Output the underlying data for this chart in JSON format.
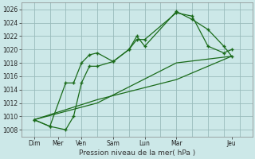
{
  "bg_color": "#cce8e8",
  "grid_color": "#99bbbb",
  "line_color": "#1a6b1a",
  "xlabel": "Pression niveau de la mer( hPa )",
  "yticks": [
    1008,
    1010,
    1012,
    1014,
    1016,
    1018,
    1020,
    1022,
    1024,
    1026
  ],
  "ylim": [
    1007.0,
    1027.0
  ],
  "xlim": [
    0,
    14
  ],
  "xtick_positions": [
    0.5,
    2,
    3.5,
    5.5,
    7.5,
    9.5,
    13
  ],
  "xtick_labels": [
    "Dim",
    "Mer",
    "Ven",
    "Sam",
    "Lun",
    "Mar",
    "Jeu"
  ],
  "vlines": [
    0.5,
    1.5,
    2.5,
    3.5,
    4.5,
    5.5,
    6.5,
    7.5,
    8.5,
    9.5,
    10.5,
    11.5,
    12.5,
    13.5
  ],
  "line1_x": [
    0.5,
    1.5,
    2.5,
    3.0,
    3.5,
    4.0,
    4.5,
    5.5,
    6.5,
    7.0,
    7.5,
    9.5,
    10.5,
    11.5,
    12.5,
    13.0
  ],
  "line1_y": [
    1009.5,
    1008.5,
    1008,
    1010,
    1015,
    1017.5,
    1017.5,
    1018.2,
    1020,
    1021.5,
    1021.5,
    1025.5,
    1025,
    1020.5,
    1019.5,
    1020
  ],
  "line2_x": [
    0.5,
    1.5,
    2.5,
    3.0,
    3.5,
    4.0,
    4.5,
    5.5,
    6.5,
    7.0,
    7.5,
    9.5,
    10.5,
    11.5,
    12.5,
    13.0
  ],
  "line2_y": [
    1009.5,
    1008.5,
    1015,
    1015,
    1018,
    1019.2,
    1019.5,
    1018.2,
    1020,
    1022,
    1020.5,
    1025.7,
    1024.5,
    1023,
    1020.5,
    1019
  ],
  "line3_x": [
    0.5,
    4.5,
    9.5,
    13.0
  ],
  "line3_y": [
    1009.5,
    1012.0,
    1018.0,
    1019.0
  ],
  "line4_x": [
    0.5,
    4.5,
    9.5,
    13.0
  ],
  "line4_y": [
    1009.5,
    1012.5,
    1015.5,
    1019.0
  ]
}
